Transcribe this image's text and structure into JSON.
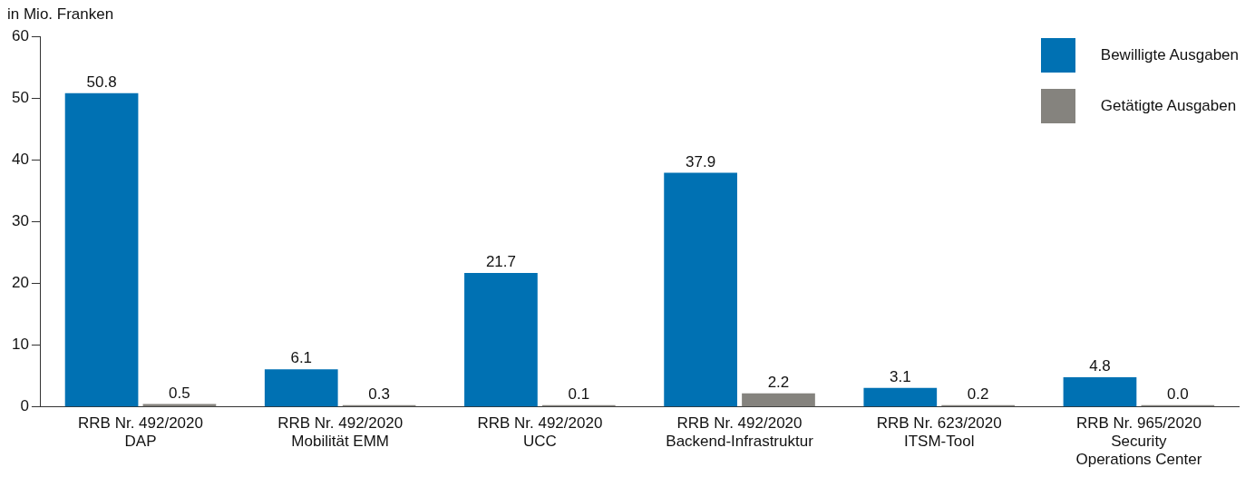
{
  "chart_data": {
    "type": "bar",
    "ylabel": "in Mio. Franken",
    "categories": [
      "RRB Nr. 492/2020\nDAP",
      "RRB Nr. 492/2020\nMobilität EMM",
      "RRB Nr. 492/2020\nUCC",
      "RRB Nr. 492/2020\nBackend-Infrastruktur",
      "RRB Nr. 623/2020\nITSM-Tool",
      "RRB Nr. 965/2020\nSecurity\nOperations Center"
    ],
    "series": [
      {
        "name": "Bewilligte Ausgaben",
        "color": "#0071b3",
        "values": [
          50.8,
          6.1,
          21.7,
          37.9,
          3.1,
          4.8
        ],
        "value_labels": [
          "50.8",
          "6.1",
          "21.7",
          "37.9",
          "3.1",
          "4.8"
        ]
      },
      {
        "name": "Getätigte Ausgaben",
        "color": "#85837e",
        "values": [
          0.5,
          0.3,
          0.1,
          2.2,
          0.2,
          0.0
        ],
        "value_labels": [
          "0.5",
          "0.3",
          "0.1",
          "2.2",
          "0.2",
          "0.0"
        ]
      }
    ],
    "ylim": [
      0,
      60
    ],
    "yticks": [
      0,
      10,
      20,
      30,
      40,
      50,
      60
    ],
    "grid": false,
    "legend": "top right"
  }
}
